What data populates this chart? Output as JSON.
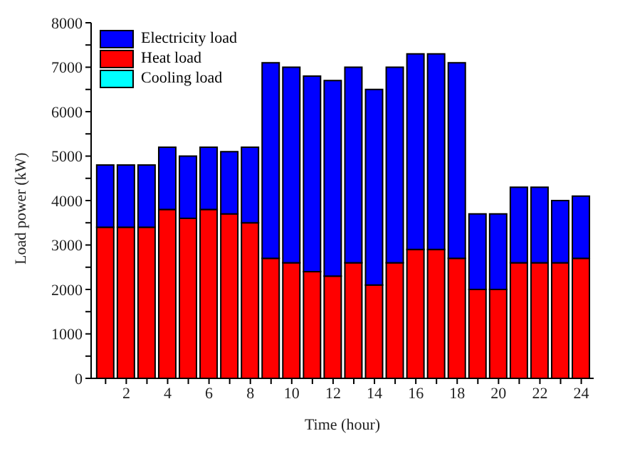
{
  "chart_data": {
    "type": "bar",
    "stacked": true,
    "xlabel": "Time (hour)",
    "ylabel": "Load power (kW)",
    "x": [
      1,
      2,
      3,
      4,
      5,
      6,
      7,
      8,
      9,
      10,
      11,
      12,
      13,
      14,
      15,
      16,
      17,
      18,
      19,
      20,
      21,
      22,
      23,
      24
    ],
    "series": [
      {
        "name": "Heat load",
        "color": "#ff0000",
        "values": [
          3400,
          3400,
          3400,
          3800,
          3600,
          3800,
          3700,
          3500,
          2700,
          2600,
          2400,
          2300,
          2600,
          2100,
          2600,
          2900,
          2900,
          2700,
          2000,
          2000,
          2600,
          2600,
          2600,
          2700
        ]
      },
      {
        "name": "Electricity load",
        "color": "#0000ff",
        "values": [
          1400,
          1400,
          1400,
          1400,
          1400,
          1400,
          1400,
          1700,
          4400,
          4400,
          4400,
          4400,
          4400,
          4400,
          4400,
          4400,
          4400,
          4400,
          1700,
          1700,
          1700,
          1700,
          1400,
          1400
        ]
      },
      {
        "name": "Cooling load",
        "color": "#00ffff",
        "values": [
          0,
          0,
          0,
          0,
          0,
          0,
          0,
          0,
          0,
          0,
          0,
          0,
          0,
          0,
          0,
          0,
          0,
          0,
          0,
          0,
          0,
          0,
          0,
          0
        ]
      }
    ],
    "xlim": [
      0.3,
      24.6
    ],
    "xticks": [
      {
        "value": 1,
        "label": null
      },
      2,
      {
        "value": 3,
        "label": null
      },
      4,
      {
        "value": 5,
        "label": null
      },
      6,
      {
        "value": 7,
        "label": null
      },
      8,
      {
        "value": 9,
        "label": null
      },
      10,
      {
        "value": 11,
        "label": null
      },
      12,
      {
        "value": 13,
        "label": null
      },
      14,
      {
        "value": 15,
        "label": null
      },
      16,
      {
        "value": 17,
        "label": null
      },
      18,
      {
        "value": 19,
        "label": null
      },
      20,
      {
        "value": 21,
        "label": null
      },
      22,
      {
        "value": 23,
        "label": null
      },
      24
    ],
    "ylim": [
      0,
      8000
    ],
    "yticks": [
      0,
      {
        "value": 500,
        "label": null
      },
      1000,
      {
        "value": 1500,
        "label": null
      },
      2000,
      {
        "value": 2500,
        "label": null
      },
      3000,
      {
        "value": 3500,
        "label": null
      },
      4000,
      {
        "value": 4500,
        "label": null
      },
      5000,
      {
        "value": 5500,
        "label": null
      },
      6000,
      {
        "value": 6500,
        "label": null
      },
      7000,
      {
        "value": 7500,
        "label": null
      },
      8000
    ],
    "grid": false,
    "legend": "top left"
  }
}
